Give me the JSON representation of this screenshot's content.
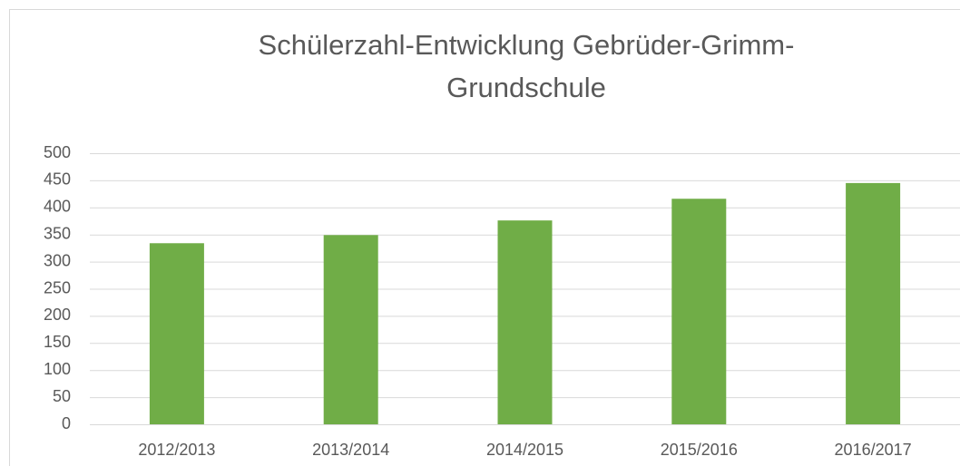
{
  "chart_data": {
    "type": "bar",
    "title": "Schülerzahl-Entwicklung Gebrüder-Grimm-Grundschule",
    "categories": [
      "2012/2013",
      "2013/2014",
      "2014/2015",
      "2015/2016",
      "2016/2017"
    ],
    "values": [
      334,
      349,
      376,
      416,
      445
    ],
    "color": "#70ad47",
    "ylim": [
      0,
      500
    ],
    "yticks": [
      0,
      50,
      100,
      150,
      200,
      250,
      300,
      350,
      400,
      450,
      500
    ],
    "grid": true
  }
}
